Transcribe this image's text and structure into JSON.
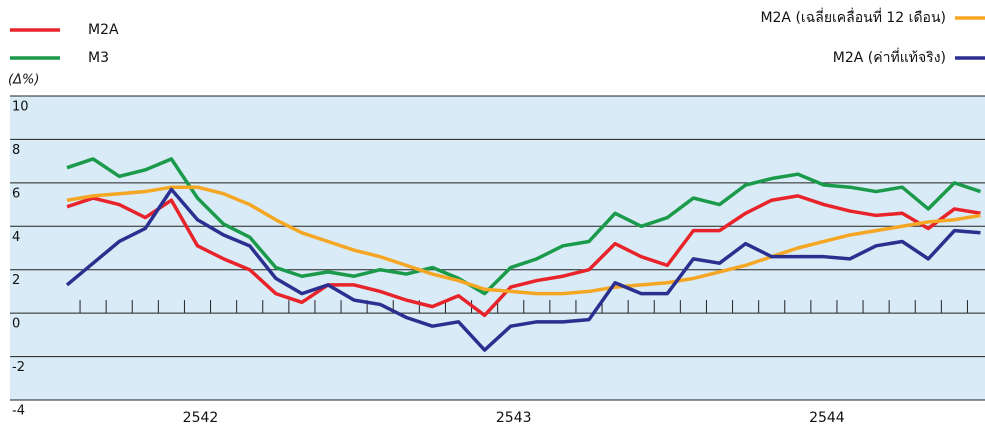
{
  "chart_data": {
    "type": "line",
    "y_label": "(Δ%)",
    "categories": [
      null,
      null,
      null,
      null,
      null,
      "2542",
      null,
      null,
      null,
      null,
      null,
      null,
      null,
      null,
      null,
      null,
      null,
      "2543",
      null,
      null,
      null,
      null,
      null,
      null,
      null,
      null,
      null,
      null,
      null,
      "2544",
      null,
      null,
      null,
      null,
      null,
      null
    ],
    "ylim": [
      -4,
      10
    ],
    "yticks": [
      -4,
      -2,
      0,
      2,
      4,
      6,
      8,
      10
    ],
    "grid": true,
    "series": [
      {
        "name": "M2A",
        "color": "#e8242a",
        "values": [
          4.9,
          5.3,
          5.0,
          4.4,
          5.2,
          3.1,
          2.5,
          2.0,
          0.9,
          0.5,
          1.3,
          1.3,
          1.0,
          0.6,
          0.3,
          0.8,
          -0.1,
          1.2,
          1.5,
          1.7,
          2.0,
          3.2,
          2.6,
          2.2,
          3.8,
          3.8,
          4.6,
          5.2,
          5.4,
          5.0,
          4.7,
          4.5,
          4.6,
          3.9,
          4.8,
          4.6
        ]
      },
      {
        "name": "M3",
        "color": "#1a9a4a",
        "values": [
          6.7,
          7.1,
          6.3,
          6.6,
          7.1,
          5.3,
          4.1,
          3.5,
          2.1,
          1.7,
          1.9,
          1.7,
          2.0,
          1.8,
          2.1,
          1.6,
          0.9,
          2.1,
          2.5,
          3.1,
          3.3,
          4.6,
          4.0,
          4.4,
          5.3,
          5.0,
          5.9,
          6.2,
          6.4,
          5.9,
          5.8,
          5.6,
          5.8,
          4.8,
          6.0,
          5.6
        ]
      },
      {
        "name": "M2A (เฉลี่ยเคลื่อนที่ 12 เดือน)",
        "color": "#f5a623",
        "values": [
          5.2,
          5.4,
          5.5,
          5.6,
          5.8,
          5.8,
          5.5,
          5.0,
          4.3,
          3.7,
          3.3,
          2.9,
          2.6,
          2.2,
          1.8,
          1.5,
          1.1,
          1.0,
          0.9,
          0.9,
          1.0,
          1.2,
          1.3,
          1.4,
          1.6,
          1.9,
          2.2,
          2.6,
          3.0,
          3.3,
          3.6,
          3.8,
          4.0,
          4.2,
          4.3,
          4.5
        ]
      },
      {
        "name": "M2A (ค่าที่แท้จริง)",
        "color": "#2b2f8f",
        "values": [
          1.3,
          2.3,
          3.3,
          3.9,
          5.7,
          4.3,
          3.6,
          3.1,
          1.6,
          0.9,
          1.3,
          0.6,
          0.4,
          -0.2,
          -0.6,
          -0.4,
          -1.7,
          -0.6,
          -0.4,
          -0.4,
          -0.3,
          1.4,
          0.9,
          0.9,
          2.5,
          2.3,
          3.2,
          2.6,
          2.6,
          2.6,
          2.5,
          3.1,
          3.3,
          2.5,
          3.8,
          3.7
        ]
      }
    ]
  }
}
